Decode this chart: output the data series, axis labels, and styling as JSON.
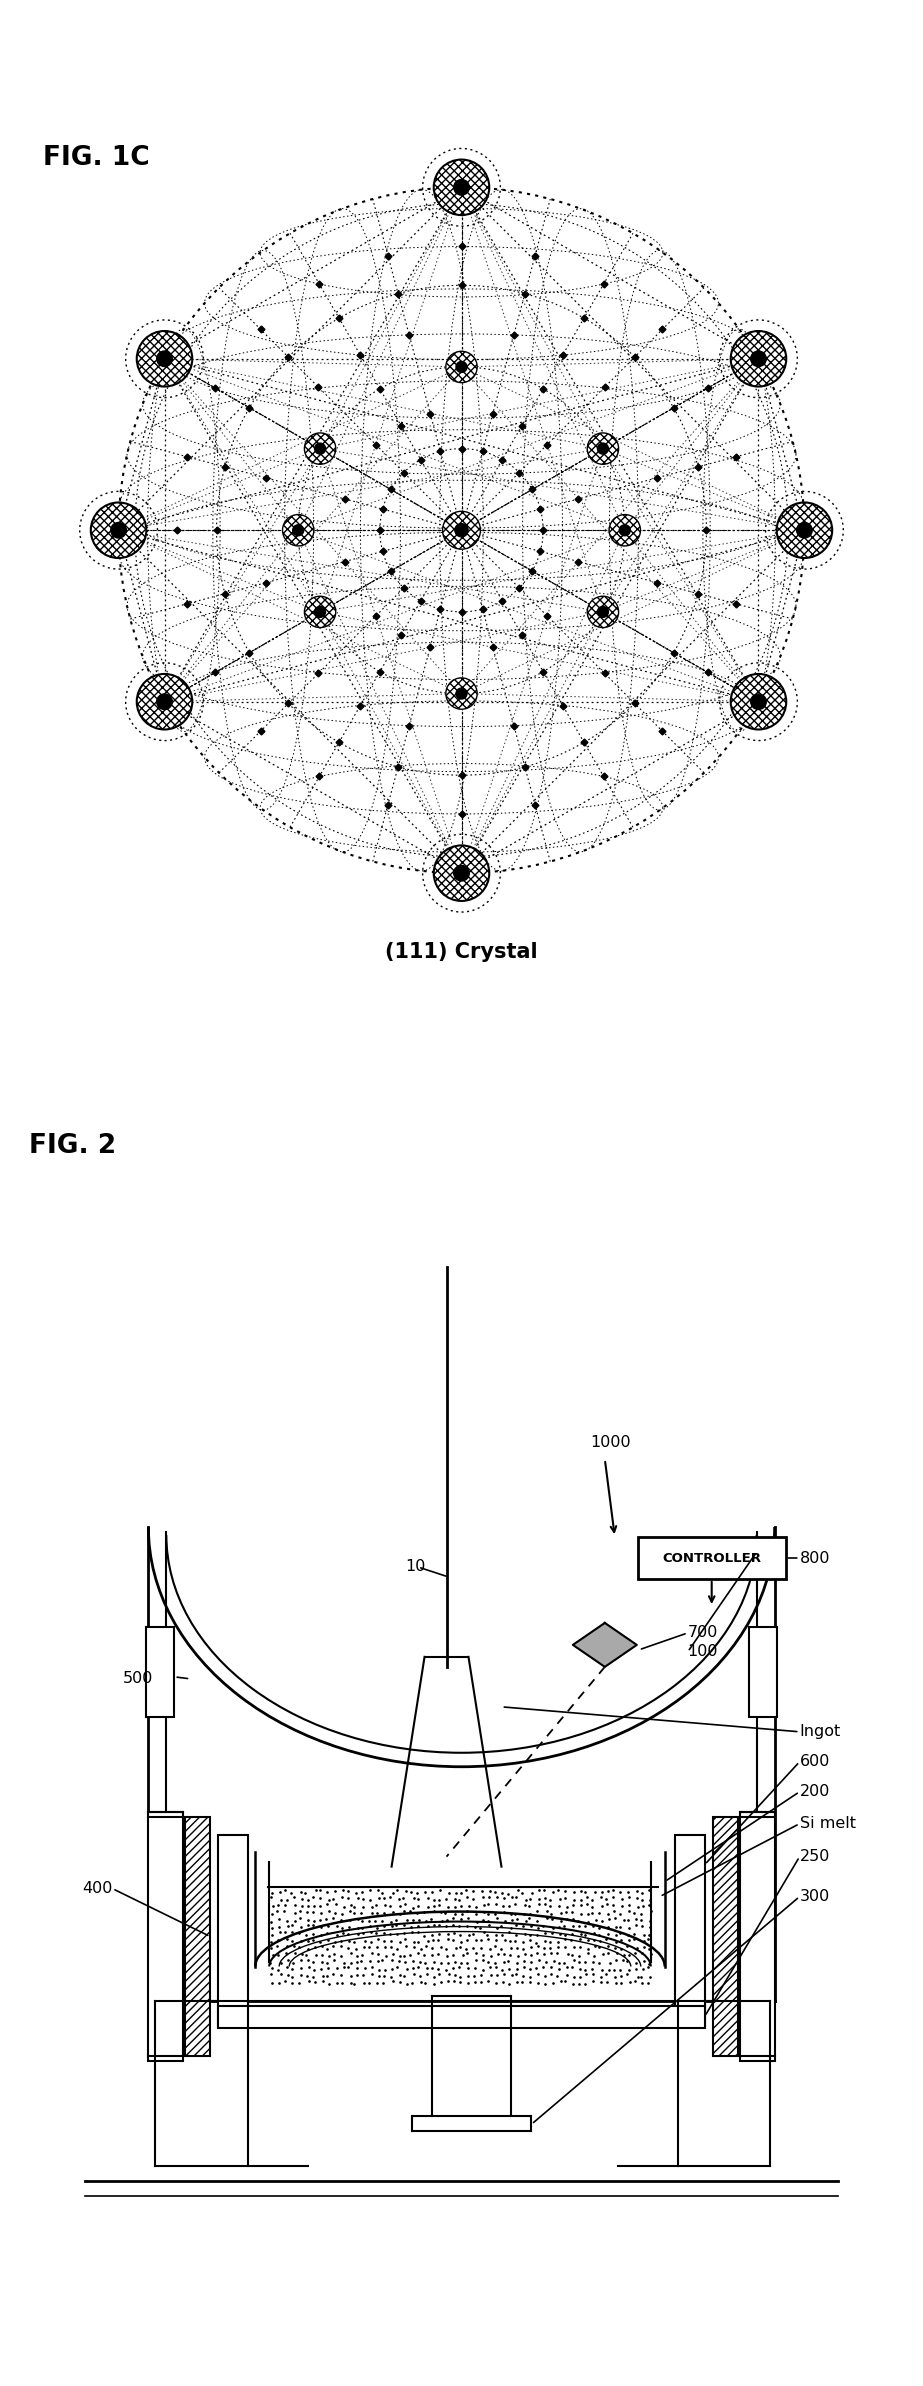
{
  "fig1c_title": "FIG. 1C",
  "fig1c_label": "(111) Crystal",
  "fig2_title": "FIG. 2",
  "bg_color": "#ffffff",
  "line_color": "#000000"
}
